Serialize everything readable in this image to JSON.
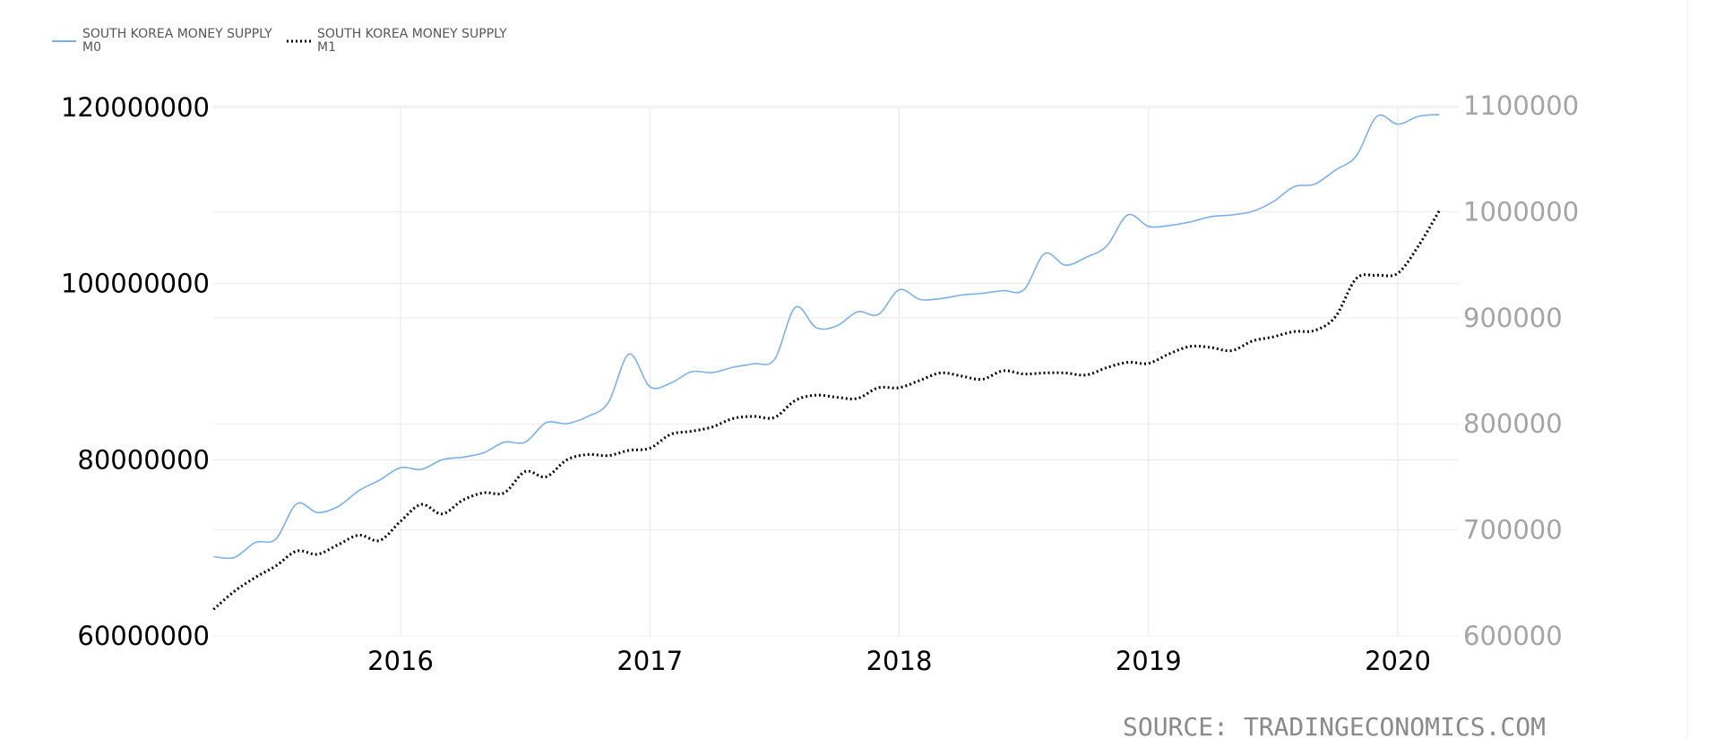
{
  "chart_data": {
    "type": "line",
    "x_axis": {
      "ticks": [
        "2016",
        "2017",
        "2018",
        "2019",
        "2020"
      ],
      "range": [
        "2015-04",
        "2020-03"
      ]
    },
    "y_axis_left": {
      "ticks": [
        "60000000",
        "80000000",
        "100000000",
        "120000000"
      ],
      "range": [
        60000000,
        120000000
      ]
    },
    "y_axis_right": {
      "ticks": [
        "600000",
        "700000",
        "800000",
        "900000",
        "1000000",
        "1100000"
      ],
      "range": [
        600000,
        1100000
      ]
    },
    "grid": true,
    "legend_position": "top-left",
    "source": "SOURCE: TRADINGECONOMICS.COM",
    "series": [
      {
        "name_line1": "SOUTH KOREA MONEY SUPPLY",
        "name_line2": "M0",
        "axis": "left",
        "color": "#7cb0e8",
        "style": "solid",
        "x": [
          "2015-04",
          "2015-05",
          "2015-06",
          "2015-07",
          "2015-08",
          "2015-09",
          "2015-10",
          "2015-11",
          "2015-12",
          "2016-01",
          "2016-02",
          "2016-03",
          "2016-04",
          "2016-05",
          "2016-06",
          "2016-07",
          "2016-08",
          "2016-09",
          "2016-10",
          "2016-11",
          "2016-12",
          "2017-01",
          "2017-02",
          "2017-03",
          "2017-04",
          "2017-05",
          "2017-06",
          "2017-07",
          "2017-08",
          "2017-09",
          "2017-10",
          "2017-11",
          "2017-12",
          "2018-01",
          "2018-02",
          "2018-03",
          "2018-04",
          "2018-05",
          "2018-06",
          "2018-07",
          "2018-08",
          "2018-09",
          "2018-10",
          "2018-11",
          "2018-12",
          "2019-01",
          "2019-02",
          "2019-03",
          "2019-04",
          "2019-05",
          "2019-06",
          "2019-07",
          "2019-08",
          "2019-09",
          "2019-10",
          "2019-11",
          "2019-12",
          "2020-01",
          "2020-02",
          "2020-03"
        ],
        "values": [
          69000000,
          68900000,
          70600000,
          71000000,
          75000000,
          74000000,
          74700000,
          76500000,
          77700000,
          79100000,
          78900000,
          80000000,
          80300000,
          80800000,
          82000000,
          82000000,
          84200000,
          84100000,
          84900000,
          86500000,
          92000000,
          88300000,
          88700000,
          90000000,
          89900000,
          90500000,
          90900000,
          91400000,
          97300000,
          95000000,
          95200000,
          96800000,
          96500000,
          99300000,
          98200000,
          98300000,
          98700000,
          98900000,
          99200000,
          99300000,
          103400000,
          102100000,
          103000000,
          104300000,
          107800000,
          106500000,
          106600000,
          107000000,
          107600000,
          107800000,
          108200000,
          109300000,
          111000000,
          111300000,
          112900000,
          114500000,
          119000000,
          118100000,
          119000000,
          119200000
        ]
      },
      {
        "name_line1": "SOUTH KOREA MONEY SUPPLY",
        "name_line2": "M1",
        "axis": "right",
        "color": "#000000",
        "style": "dotted",
        "x": [
          "2015-04",
          "2015-05",
          "2015-06",
          "2015-07",
          "2015-08",
          "2015-09",
          "2015-10",
          "2015-11",
          "2015-12",
          "2016-01",
          "2016-02",
          "2016-03",
          "2016-04",
          "2016-05",
          "2016-06",
          "2016-07",
          "2016-08",
          "2016-09",
          "2016-10",
          "2016-11",
          "2016-12",
          "2017-01",
          "2017-02",
          "2017-03",
          "2017-04",
          "2017-05",
          "2017-06",
          "2017-07",
          "2017-08",
          "2017-09",
          "2017-10",
          "2017-11",
          "2017-12",
          "2018-01",
          "2018-02",
          "2018-03",
          "2018-04",
          "2018-05",
          "2018-06",
          "2018-07",
          "2018-08",
          "2018-09",
          "2018-10",
          "2018-11",
          "2018-12",
          "2019-01",
          "2019-02",
          "2019-03",
          "2019-04",
          "2019-05",
          "2019-06",
          "2019-07",
          "2019-08",
          "2019-09",
          "2019-10",
          "2019-11",
          "2019-12",
          "2020-01",
          "2020-02",
          "2020-03"
        ],
        "values": [
          625000,
          642000,
          655000,
          666000,
          680000,
          677000,
          686000,
          695000,
          690000,
          708000,
          724000,
          715000,
          728000,
          735000,
          735000,
          755000,
          750000,
          766000,
          771000,
          770000,
          775000,
          777000,
          790000,
          793000,
          797000,
          805000,
          807000,
          806000,
          822000,
          827000,
          825000,
          824000,
          834000,
          834000,
          841000,
          848000,
          845000,
          842000,
          850000,
          847000,
          848000,
          848000,
          846000,
          853000,
          858000,
          857000,
          866000,
          873000,
          872000,
          869000,
          878000,
          882000,
          887000,
          888000,
          901000,
          937000,
          940000,
          942000,
          968000,
          1001000
        ]
      }
    ]
  }
}
